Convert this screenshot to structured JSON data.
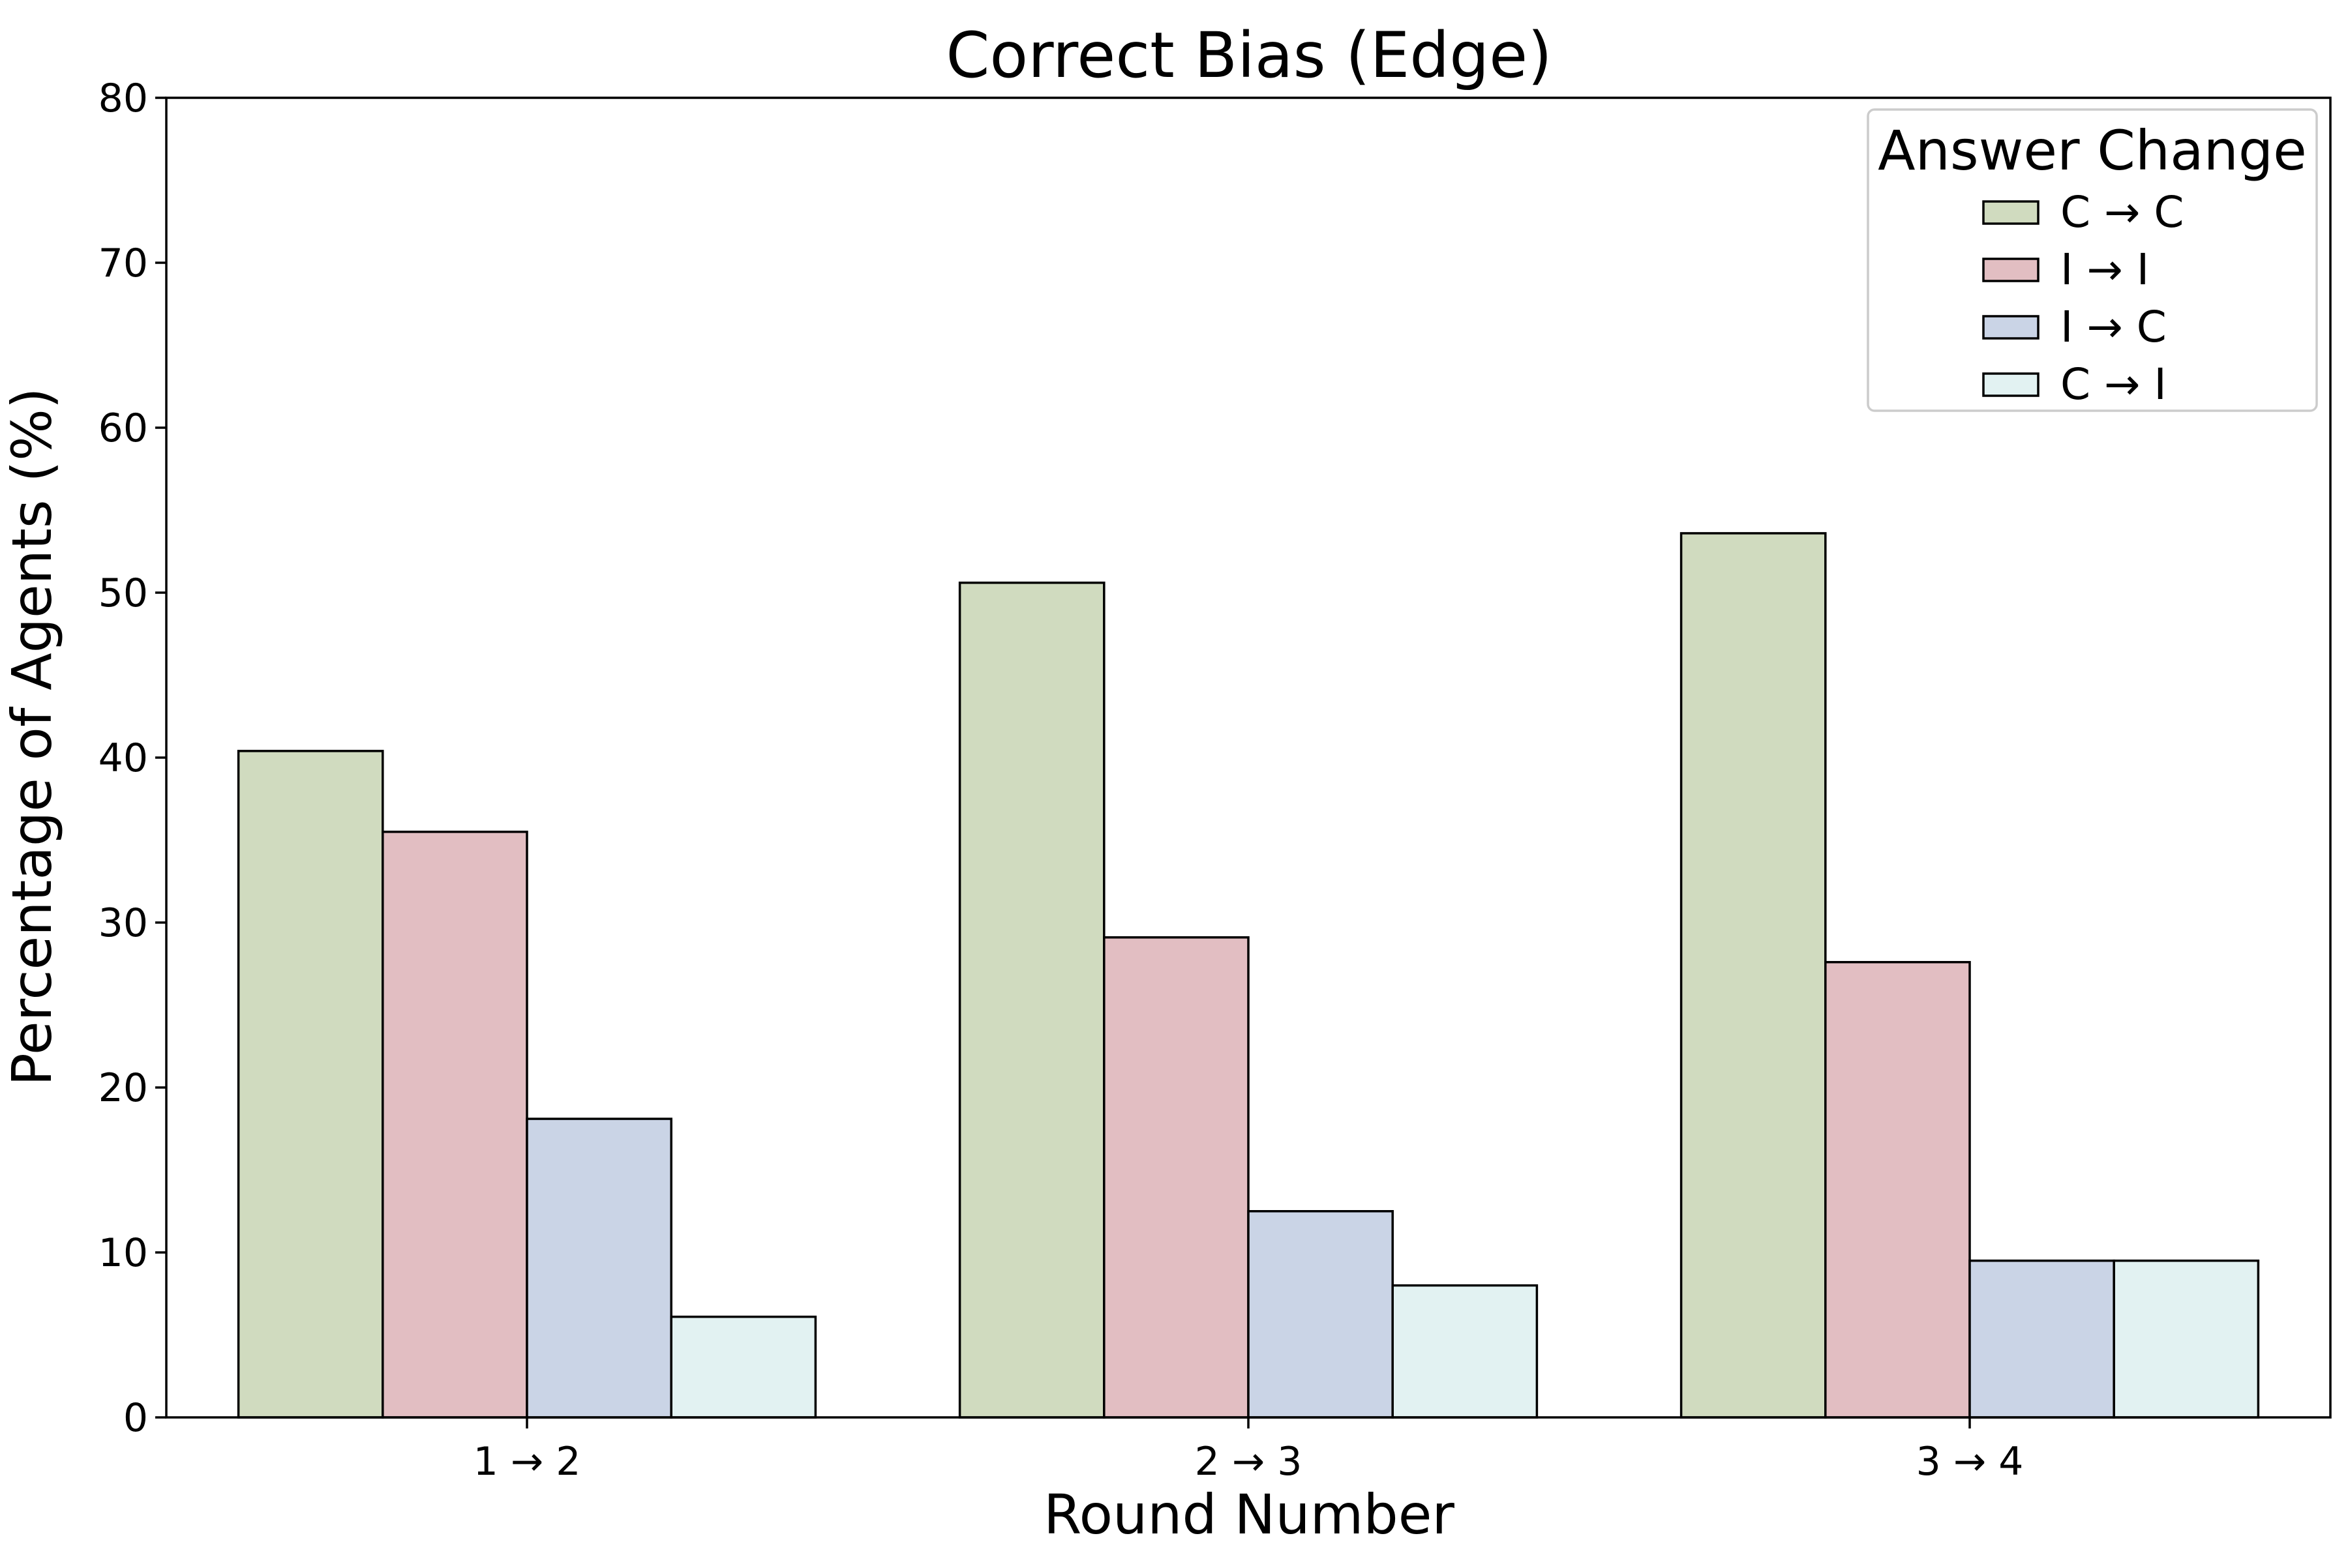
{
  "chart_data": {
    "type": "bar",
    "title": "Correct Bias (Edge)",
    "xlabel": "Round Number",
    "ylabel": "Percentage of Agents (%)",
    "ylim": [
      0,
      80
    ],
    "yticks": [
      "0",
      "10",
      "20",
      "30",
      "40",
      "50",
      "60",
      "70",
      "80"
    ],
    "categories": [
      "1 → 2",
      "2 → 3",
      "3 → 4"
    ],
    "legend": {
      "title": "Answer Change",
      "position": "top-right"
    },
    "grid": false,
    "series": [
      {
        "name": "C → C",
        "color": "#d0dbbf",
        "values": [
          40.4,
          50.6,
          53.6
        ]
      },
      {
        "name": "I → I",
        "color": "#e2bec2",
        "values": [
          35.5,
          29.1,
          27.6
        ]
      },
      {
        "name": "I → C",
        "color": "#cad4e6",
        "values": [
          18.1,
          12.5,
          9.5
        ]
      },
      {
        "name": "C → I",
        "color": "#e2f2f2",
        "values": [
          6.1,
          8.0,
          9.5
        ]
      }
    ]
  }
}
